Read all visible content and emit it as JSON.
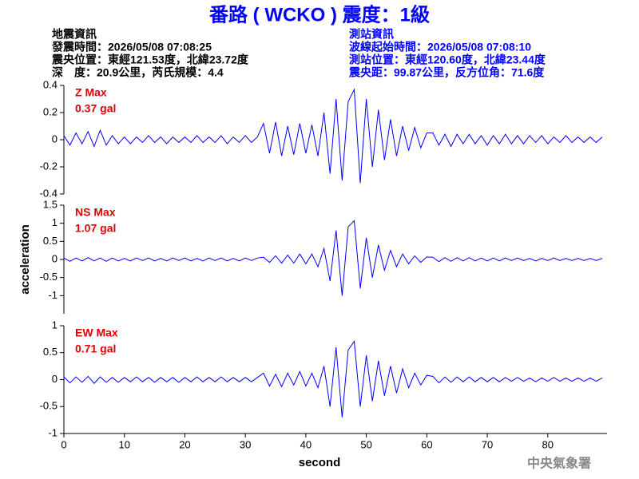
{
  "header": {
    "title": "番路 ( WCKO ) 震度：1級",
    "left": [
      "地震資訊",
      "發震時間：2026/05/08 07:08:25",
      "震央位置：東經121.53度，北緯23.72度",
      "深　度：20.9公里，芮氏規模：4.4"
    ],
    "right": [
      "測站資訊",
      "波線起始時間：2026/05/08 07:08:10",
      "測站位置：東經120.60度，北緯23.44度",
      "震央距：99.87公里，反方位角：71.6度"
    ],
    "footer": "中央氣象署"
  },
  "chart_data": [
    {
      "type": "line",
      "label": "Z Max",
      "max_label": "0.37 gal",
      "xlim": [
        0,
        89.8
      ],
      "ylim": [
        -0.4,
        0.4
      ],
      "yticks": [
        0.4,
        0.2,
        0,
        -0.2,
        -0.4
      ],
      "x": [
        0,
        1,
        2,
        3,
        4,
        5,
        6,
        7,
        8,
        9,
        10,
        11,
        12,
        13,
        14,
        15,
        16,
        17,
        18,
        19,
        20,
        21,
        22,
        23,
        24,
        25,
        26,
        27,
        28,
        29,
        30,
        31,
        32,
        33,
        34,
        35,
        36,
        37,
        38,
        39,
        40,
        41,
        42,
        43,
        44,
        45,
        46,
        47,
        48,
        49,
        50,
        51,
        52,
        53,
        54,
        55,
        56,
        57,
        58,
        59,
        60,
        61,
        62,
        63,
        64,
        65,
        66,
        67,
        68,
        69,
        70,
        71,
        72,
        73,
        74,
        75,
        76,
        77,
        78,
        79,
        80,
        81,
        82,
        83,
        84,
        85,
        86,
        87,
        88,
        89
      ],
      "series": [
        {
          "color": "#0000ff",
          "values": [
            0.03,
            -0.04,
            0.05,
            -0.03,
            0.06,
            -0.05,
            0.07,
            -0.04,
            0.03,
            -0.03,
            0.02,
            -0.03,
            0.02,
            -0.02,
            0.03,
            -0.02,
            0.02,
            -0.03,
            0.02,
            -0.02,
            0.02,
            -0.02,
            0.03,
            -0.02,
            0.02,
            -0.02,
            0.03,
            -0.03,
            0.02,
            -0.02,
            0.03,
            -0.02,
            0.02,
            0.12,
            -0.1,
            0.13,
            -0.12,
            0.1,
            -0.11,
            0.12,
            -0.1,
            0.11,
            -0.12,
            0.2,
            -0.25,
            0.3,
            -0.3,
            0.28,
            0.37,
            -0.32,
            0.3,
            -0.2,
            0.22,
            -0.15,
            0.15,
            -0.12,
            0.1,
            -0.08,
            0.09,
            -0.06,
            0.05,
            0.05,
            -0.04,
            0.04,
            -0.05,
            0.04,
            -0.03,
            0.04,
            -0.03,
            0.03,
            -0.04,
            0.03,
            -0.03,
            0.04,
            -0.03,
            0.03,
            -0.03,
            0.03,
            -0.02,
            0.03,
            -0.03,
            0.02,
            -0.02,
            0.03,
            -0.02,
            0.02,
            -0.02,
            0.02,
            -0.02,
            0.02
          ]
        }
      ]
    },
    {
      "type": "line",
      "label": "NS Max",
      "max_label": "1.07 gal",
      "ylabel": "acceleration",
      "xlim": [
        0,
        89.8
      ],
      "ylim": [
        -1.5,
        1.5
      ],
      "yticks": [
        1.5,
        1,
        0.5,
        0,
        -0.5,
        -1
      ],
      "x": [
        0,
        1,
        2,
        3,
        4,
        5,
        6,
        7,
        8,
        9,
        10,
        11,
        12,
        13,
        14,
        15,
        16,
        17,
        18,
        19,
        20,
        21,
        22,
        23,
        24,
        25,
        26,
        27,
        28,
        29,
        30,
        31,
        32,
        33,
        34,
        35,
        36,
        37,
        38,
        39,
        40,
        41,
        42,
        43,
        44,
        45,
        46,
        47,
        48,
        49,
        50,
        51,
        52,
        53,
        54,
        55,
        56,
        57,
        58,
        59,
        60,
        61,
        62,
        63,
        64,
        65,
        66,
        67,
        68,
        69,
        70,
        71,
        72,
        73,
        74,
        75,
        76,
        77,
        78,
        79,
        80,
        81,
        82,
        83,
        84,
        85,
        86,
        87,
        88,
        89
      ],
      "series": [
        {
          "color": "#0000ff",
          "values": [
            0.04,
            -0.05,
            0.04,
            -0.04,
            0.05,
            -0.04,
            0.04,
            -0.05,
            0.04,
            -0.04,
            0.03,
            -0.04,
            0.04,
            -0.03,
            0.04,
            -0.04,
            0.03,
            -0.04,
            0.04,
            -0.03,
            0.04,
            -0.04,
            0.03,
            -0.04,
            0.04,
            -0.03,
            0.04,
            -0.04,
            0.03,
            -0.04,
            0.04,
            -0.03,
            0.04,
            0.06,
            -0.08,
            0.1,
            -0.1,
            0.12,
            -0.1,
            0.15,
            -0.12,
            0.15,
            -0.2,
            0.3,
            -0.6,
            0.8,
            -1.0,
            0.9,
            1.07,
            -0.8,
            0.6,
            -0.5,
            0.4,
            -0.3,
            0.25,
            -0.2,
            0.15,
            -0.12,
            0.1,
            -0.08,
            0.07,
            0.06,
            -0.06,
            0.05,
            -0.05,
            0.05,
            -0.04,
            0.05,
            -0.04,
            0.04,
            -0.04,
            0.04,
            -0.04,
            0.04,
            -0.03,
            0.04,
            -0.03,
            0.03,
            -0.04,
            0.03,
            -0.03,
            0.04,
            -0.03,
            0.03,
            -0.03,
            0.03,
            -0.03,
            0.03,
            -0.03,
            0.03
          ]
        }
      ]
    },
    {
      "type": "line",
      "label": "EW Max",
      "max_label": "0.71 gal",
      "xlabel": "second",
      "xlim": [
        0,
        89.8
      ],
      "xticks": [
        0,
        10,
        20,
        30,
        40,
        50,
        60,
        70,
        80
      ],
      "ylim": [
        -1,
        1
      ],
      "yticks": [
        1,
        0.5,
        0,
        -0.5,
        -1
      ],
      "x": [
        0,
        1,
        2,
        3,
        4,
        5,
        6,
        7,
        8,
        9,
        10,
        11,
        12,
        13,
        14,
        15,
        16,
        17,
        18,
        19,
        20,
        21,
        22,
        23,
        24,
        25,
        26,
        27,
        28,
        29,
        30,
        31,
        32,
        33,
        34,
        35,
        36,
        37,
        38,
        39,
        40,
        41,
        42,
        43,
        44,
        45,
        46,
        47,
        48,
        49,
        50,
        51,
        52,
        53,
        54,
        55,
        56,
        57,
        58,
        59,
        60,
        61,
        62,
        63,
        64,
        65,
        66,
        67,
        68,
        69,
        70,
        71,
        72,
        73,
        74,
        75,
        76,
        77,
        78,
        79,
        80,
        81,
        82,
        83,
        84,
        85,
        86,
        87,
        88,
        89
      ],
      "series": [
        {
          "color": "#0000ff",
          "values": [
            0.05,
            -0.06,
            0.05,
            -0.05,
            0.06,
            -0.07,
            0.05,
            -0.05,
            0.04,
            -0.05,
            0.04,
            -0.04,
            0.05,
            -0.04,
            0.04,
            -0.05,
            0.04,
            -0.04,
            0.04,
            -0.05,
            0.04,
            -0.04,
            0.05,
            -0.04,
            0.04,
            -0.04,
            0.05,
            -0.04,
            0.04,
            -0.04,
            0.04,
            -0.04,
            0.04,
            0.12,
            -0.12,
            0.1,
            -0.13,
            0.12,
            -0.1,
            0.15,
            -0.12,
            0.12,
            -0.15,
            0.25,
            -0.5,
            0.6,
            -0.7,
            0.55,
            0.71,
            -0.5,
            0.45,
            -0.4,
            0.35,
            -0.3,
            0.25,
            -0.25,
            0.2,
            -0.15,
            0.12,
            -0.1,
            0.08,
            0.06,
            -0.06,
            0.05,
            -0.05,
            0.05,
            -0.04,
            0.05,
            -0.04,
            0.04,
            -0.04,
            0.04,
            -0.04,
            0.04,
            -0.03,
            0.04,
            -0.03,
            0.03,
            -0.04,
            0.03,
            -0.03,
            0.04,
            -0.03,
            0.03,
            -0.03,
            0.03,
            -0.03,
            0.03,
            -0.03,
            0.03
          ]
        }
      ]
    }
  ]
}
